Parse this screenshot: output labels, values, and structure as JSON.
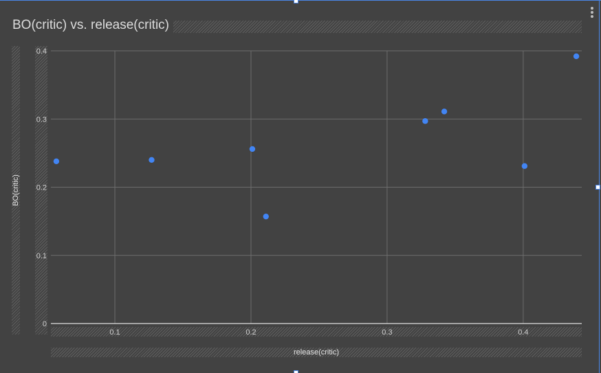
{
  "chart_data": {
    "type": "scatter",
    "title": "BO(critic) vs. release(critic)",
    "xlabel": "release(critic)",
    "ylabel": "BO(critic)",
    "xlim": [
      0.053,
      0.443
    ],
    "ylim": [
      0,
      0.4
    ],
    "xticks": [
      0.1,
      0.2,
      0.3,
      0.4
    ],
    "yticks": [
      0,
      0.1,
      0.2,
      0.3,
      0.4
    ],
    "xtick_labels": [
      "0.1",
      "0.2",
      "0.3",
      "0.4"
    ],
    "ytick_labels": [
      "0",
      "0.1",
      "0.2",
      "0.3",
      "0.4"
    ],
    "grid": true,
    "legend": "none",
    "series": [
      {
        "color": "#4285f4",
        "points": [
          {
            "x": 0.057,
            "y": 0.238
          },
          {
            "x": 0.127,
            "y": 0.24
          },
          {
            "x": 0.201,
            "y": 0.256
          },
          {
            "x": 0.211,
            "y": 0.157
          },
          {
            "x": 0.328,
            "y": 0.297
          },
          {
            "x": 0.342,
            "y": 0.311
          },
          {
            "x": 0.401,
            "y": 0.231
          },
          {
            "x": 0.439,
            "y": 0.392
          }
        ]
      }
    ]
  },
  "colors": {
    "background": "#424242",
    "gridline": "#6d6d6d",
    "axis_line": "#e0e0e0",
    "tick_text": "#d0d0d0",
    "point": "#4285f4",
    "selection": "#4a86e8"
  },
  "icons": {
    "menu": "more-vert-icon"
  }
}
